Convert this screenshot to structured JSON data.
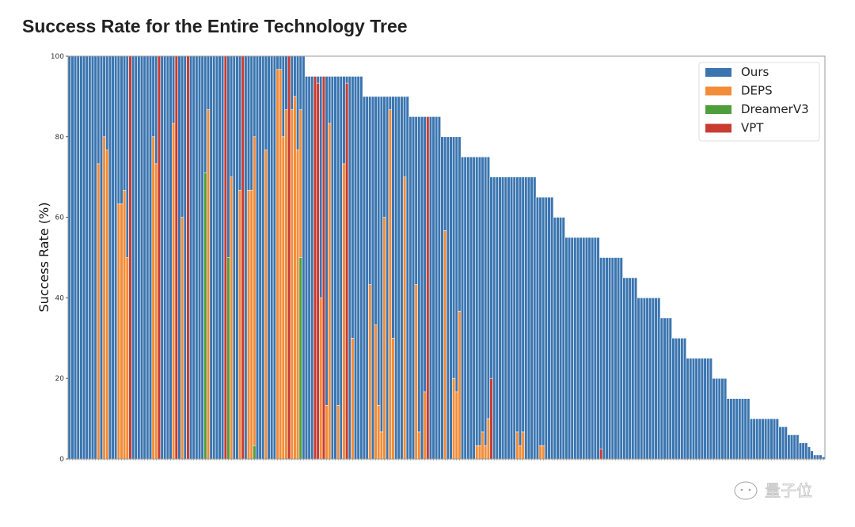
{
  "chart_data": {
    "type": "bar",
    "title": "Success Rate for the Entire Technology Tree",
    "xlabel": "",
    "ylabel": "Success Rate (%)",
    "ylim": [
      0,
      100
    ],
    "yticks": [
      0,
      20,
      40,
      60,
      80,
      100
    ],
    "grid": false,
    "legend_placement": "top-right",
    "bar_mode": "overlaid",
    "category_count": 262,
    "series": [
      {
        "name": "Ours",
        "color": "#3a75b0",
        "values": [
          100,
          100,
          100,
          100,
          100,
          100,
          100,
          100,
          100,
          100,
          100,
          100,
          100,
          100,
          100,
          100,
          100,
          100,
          100,
          100,
          100,
          100,
          100,
          100,
          100,
          100,
          100,
          100,
          100,
          100,
          100,
          100,
          100,
          100,
          100,
          100,
          100,
          100,
          100,
          100,
          100,
          100,
          100,
          100,
          100,
          100,
          100,
          100,
          100,
          100,
          100,
          100,
          100,
          100,
          100,
          100,
          100,
          100,
          100,
          100,
          100,
          100,
          100,
          100,
          100,
          100,
          100,
          100,
          100,
          100,
          100,
          100,
          100,
          100,
          100,
          100,
          100,
          100,
          100,
          100,
          100,
          100,
          95,
          95,
          95,
          95,
          95,
          95,
          95,
          95,
          95,
          95,
          95,
          95,
          95,
          95,
          95,
          95,
          95,
          95,
          95,
          95,
          90,
          90,
          90,
          90,
          90,
          90,
          90,
          90,
          90,
          90,
          90,
          90,
          90,
          90,
          90,
          90,
          85,
          85,
          85,
          85,
          85,
          85,
          85,
          85,
          85,
          85,
          85,
          80,
          80,
          80,
          80,
          80,
          80,
          80,
          75,
          75,
          75,
          75,
          75,
          75,
          75,
          75,
          75,
          75,
          70,
          70,
          70,
          70,
          70,
          70,
          70,
          70,
          70,
          70,
          70,
          70,
          70,
          70,
          70,
          70,
          65,
          65,
          65,
          65,
          65,
          65,
          60,
          60,
          60,
          60,
          55,
          55,
          55,
          55,
          55,
          55,
          55,
          55,
          55,
          55,
          55,
          55,
          50,
          50,
          50,
          50,
          50,
          50,
          50,
          50,
          45,
          45,
          45,
          45,
          45,
          40,
          40,
          40,
          40,
          40,
          40,
          40,
          40,
          35,
          35,
          35,
          35,
          30,
          30,
          30,
          30,
          30,
          25,
          25,
          25,
          25,
          25,
          25,
          25,
          25,
          25,
          20,
          20,
          20,
          20,
          20,
          15,
          15,
          15,
          15,
          15,
          15,
          15,
          15,
          10,
          10,
          10,
          10,
          10,
          10,
          10,
          10,
          10,
          10,
          8,
          8,
          8,
          6,
          6,
          6,
          6,
          4,
          4,
          4,
          3,
          2,
          1,
          1,
          1,
          0.5
        ]
      },
      {
        "name": "DEPS",
        "color": "#f28c38",
        "points": [
          [
            10,
            73.3
          ],
          [
            12,
            80
          ],
          [
            13,
            76.7
          ],
          [
            17,
            63.3
          ],
          [
            18,
            63.3
          ],
          [
            19,
            66.7
          ],
          [
            20,
            50
          ],
          [
            29,
            80
          ],
          [
            30,
            73.3
          ],
          [
            36,
            83.3
          ],
          [
            39,
            60
          ],
          [
            48,
            86.7
          ],
          [
            56,
            70
          ],
          [
            59,
            66.7
          ],
          [
            62,
            66.7
          ],
          [
            63,
            66.7
          ],
          [
            64,
            80
          ],
          [
            68,
            76.7
          ],
          [
            72,
            96.7
          ],
          [
            73,
            96.7
          ],
          [
            74,
            80
          ],
          [
            75,
            86.7
          ],
          [
            77,
            86.7
          ],
          [
            78,
            90
          ],
          [
            79,
            76.7
          ],
          [
            80,
            86.7
          ],
          [
            87,
            40
          ],
          [
            89,
            13.3
          ],
          [
            90,
            83.3
          ],
          [
            93,
            13.3
          ],
          [
            95,
            73.3
          ],
          [
            98,
            30
          ],
          [
            104,
            43.3
          ],
          [
            106,
            33.3
          ],
          [
            107,
            13.3
          ],
          [
            108,
            6.7
          ],
          [
            109,
            60
          ],
          [
            111,
            86.7
          ],
          [
            112,
            30
          ],
          [
            116,
            70
          ],
          [
            120,
            43.3
          ],
          [
            121,
            6.7
          ],
          [
            123,
            16.7
          ],
          [
            130,
            56.7
          ],
          [
            133,
            20
          ],
          [
            134,
            16.7
          ],
          [
            135,
            36.7
          ],
          [
            141,
            3.3
          ],
          [
            142,
            3.3
          ],
          [
            143,
            6.7
          ],
          [
            144,
            3.3
          ],
          [
            145,
            10
          ],
          [
            155,
            6.7
          ],
          [
            156,
            3.3
          ],
          [
            157,
            6.7
          ],
          [
            163,
            3.3
          ],
          [
            164,
            3.3
          ]
        ]
      },
      {
        "name": "DreamerV3",
        "color": "#4f9e3c",
        "points": [
          [
            47,
            71
          ],
          [
            55,
            50
          ],
          [
            64,
            3.3
          ],
          [
            80,
            50
          ]
        ]
      },
      {
        "name": "VPT",
        "color": "#c83b31",
        "points": [
          [
            21,
            100
          ],
          [
            31,
            100
          ],
          [
            37,
            100
          ],
          [
            41,
            100
          ],
          [
            54,
            100
          ],
          [
            60,
            100
          ],
          [
            76,
            100
          ],
          [
            85,
            95
          ],
          [
            86,
            93.3
          ],
          [
            88,
            95
          ],
          [
            96,
            93.3
          ],
          [
            124,
            85
          ],
          [
            146,
            20
          ],
          [
            184,
            2.5
          ]
        ]
      }
    ]
  },
  "watermark": {
    "text": "量子位",
    "icon": "wechat-bubble-icon"
  }
}
